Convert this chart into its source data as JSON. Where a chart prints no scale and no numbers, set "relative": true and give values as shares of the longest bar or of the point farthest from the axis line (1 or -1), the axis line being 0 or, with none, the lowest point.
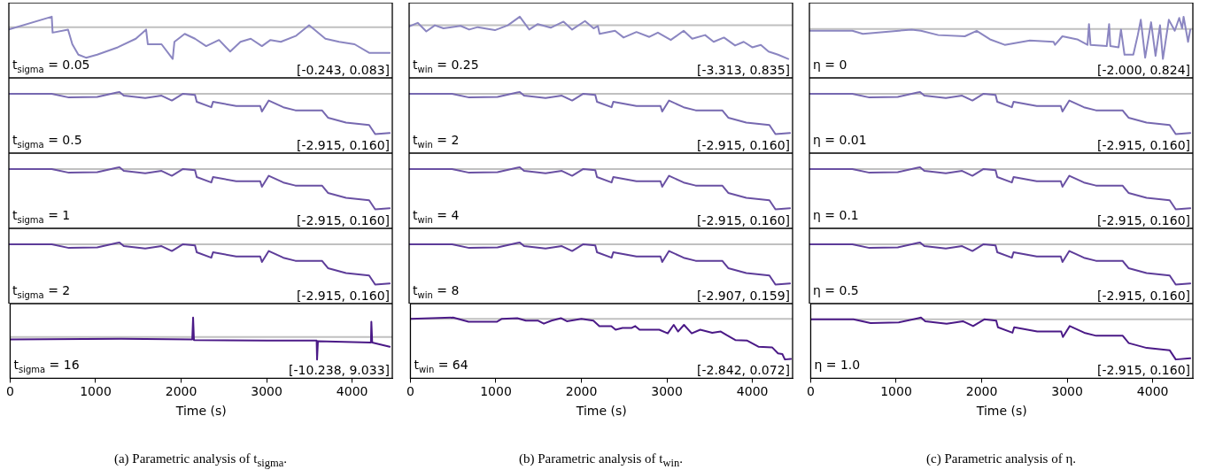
{
  "chart_data": [
    {
      "type": "line",
      "relative": true,
      "tick_labels": false,
      "xlim": [
        0,
        4470
      ],
      "color": "#8b86c1",
      "annotations": [
        "t$_{sigma}$ = 0.05",
        "[-0.243, 0.083]"
      ],
      "ref_lines": [
        {
          "axis": "y",
          "value": 0.83,
          "color": "#c0c0c0"
        }
      ],
      "x": [
        0,
        500,
        510,
        690,
        740,
        810,
        900,
        1030,
        1270,
        1480,
        1600,
        1620,
        1780,
        1910,
        1930,
        2050,
        2170,
        2300,
        2450,
        2580,
        2700,
        2820,
        2950,
        3050,
        3170,
        3350,
        3500,
        3690,
        3850,
        4030,
        4200,
        4440
      ],
      "values": [
        0.79,
        1,
        0.74,
        0.79,
        0.55,
        0.38,
        0.33,
        0.38,
        0.5,
        0.64,
        0.79,
        0.55,
        0.55,
        0.31,
        0.59,
        0.72,
        0.64,
        0.52,
        0.62,
        0.43,
        0.59,
        0.64,
        0.52,
        0.62,
        0.59,
        0.69,
        0.86,
        0.64,
        0.59,
        0.55,
        0.41,
        0.41
      ]
    },
    {
      "type": "line",
      "relative": true,
      "tick_labels": false,
      "xlim": [
        0,
        4470
      ],
      "color": "#7668b0",
      "annotations": [
        "t$_{sigma}$ = 0.5",
        "[-2.915, 0.160]"
      ],
      "ref_lines": [
        {
          "axis": "y",
          "value": 0.97,
          "color": "#c0c0c0"
        }
      ],
      "x": [
        0,
        500,
        700,
        1030,
        1260,
        1290,
        1340,
        1590,
        1780,
        1900,
        2030,
        2170,
        2190,
        2360,
        2380,
        2650,
        2930,
        2950,
        3030,
        3200,
        3340,
        3650,
        3720,
        3930,
        4200,
        4270,
        4440
      ],
      "values": [
        0.97,
        0.97,
        0.91,
        0.92,
        0.99,
        1,
        0.94,
        0.9,
        0.94,
        0.86,
        0.97,
        0.95,
        0.84,
        0.75,
        0.84,
        0.77,
        0.77,
        0.68,
        0.86,
        0.75,
        0.7,
        0.7,
        0.58,
        0.5,
        0.46,
        0.31,
        0.33
      ]
    },
    {
      "type": "line",
      "relative": true,
      "tick_labels": false,
      "xlim": [
        0,
        4470
      ],
      "color": "#6a51a3",
      "annotations": [
        "t$_{sigma}$ = 1",
        "[-2.915, 0.160]"
      ],
      "ref_lines": [
        {
          "axis": "y",
          "value": 0.97,
          "color": "#c0c0c0"
        }
      ],
      "x": [
        0,
        500,
        700,
        1030,
        1260,
        1290,
        1340,
        1590,
        1780,
        1900,
        2030,
        2170,
        2190,
        2360,
        2380,
        2650,
        2930,
        2950,
        3030,
        3200,
        3340,
        3650,
        3720,
        3930,
        4200,
        4270,
        4440
      ],
      "values": [
        0.97,
        0.97,
        0.91,
        0.92,
        0.99,
        1,
        0.94,
        0.9,
        0.94,
        0.86,
        0.97,
        0.95,
        0.84,
        0.75,
        0.84,
        0.77,
        0.77,
        0.68,
        0.86,
        0.75,
        0.7,
        0.7,
        0.58,
        0.5,
        0.46,
        0.31,
        0.33
      ]
    },
    {
      "type": "line",
      "relative": true,
      "tick_labels": false,
      "xlim": [
        0,
        4470
      ],
      "color": "#5d3c99",
      "annotations": [
        "t$_{sigma}$ = 2",
        "[-2.915, 0.160]"
      ],
      "ref_lines": [
        {
          "axis": "y",
          "value": 0.97,
          "color": "#c0c0c0"
        }
      ],
      "x": [
        0,
        500,
        700,
        1030,
        1260,
        1290,
        1340,
        1590,
        1780,
        1900,
        2030,
        2170,
        2190,
        2360,
        2380,
        2650,
        2930,
        2950,
        3030,
        3200,
        3340,
        3650,
        3720,
        3930,
        4200,
        4270,
        4440
      ],
      "values": [
        0.97,
        0.97,
        0.91,
        0.92,
        0.99,
        1,
        0.94,
        0.9,
        0.94,
        0.86,
        0.97,
        0.95,
        0.84,
        0.75,
        0.84,
        0.77,
        0.77,
        0.68,
        0.86,
        0.75,
        0.7,
        0.7,
        0.58,
        0.5,
        0.46,
        0.31,
        0.33
      ]
    },
    {
      "type": "line",
      "relative": true,
      "tick_labels": "x",
      "xlim": [
        0,
        4470
      ],
      "xticks": [
        0,
        1000,
        2000,
        3000,
        4000
      ],
      "xlabel": "Time (s)",
      "color": "#4b1a87",
      "annotations": [
        "t$_{sigma}$ = 16",
        "[-10.238, 9.033]",
        "(a) Parametric analysis of t$_{sigma}$."
      ],
      "ref_lines": [
        {
          "axis": "y",
          "value": 0.68,
          "color": "#c0c0c0"
        }
      ],
      "x": [
        0,
        1300,
        2130,
        2140,
        2150,
        3000,
        3585,
        3590,
        3600,
        4220,
        4225,
        4235,
        4440
      ],
      "values": [
        0.64,
        0.65,
        0.64,
        1,
        0.63,
        0.62,
        0.62,
        0.31,
        0.61,
        0.59,
        0.93,
        0.59,
        0.52
      ]
    },
    {
      "type": "line",
      "relative": true,
      "tick_labels": false,
      "xlim": [
        0,
        4470
      ],
      "color": "#8b86c1",
      "annotations": [
        "t$_{win}$ = 0.25",
        "[-3.313, 0.835]"
      ],
      "ref_lines": [
        {
          "axis": "y",
          "value": 0.86,
          "color": "#c0c0c0"
        }
      ],
      "x": [
        0,
        100,
        200,
        300,
        400,
        600,
        700,
        800,
        1000,
        1150,
        1290,
        1400,
        1500,
        1650,
        1800,
        1900,
        2050,
        2150,
        2200,
        2220,
        2400,
        2500,
        2650,
        2800,
        2900,
        3050,
        3200,
        3300,
        3450,
        3550,
        3670,
        3800,
        3900,
        4000,
        4100,
        4190,
        4300,
        4420
      ],
      "values": [
        0.84,
        0.9,
        0.76,
        0.86,
        0.81,
        0.85,
        0.79,
        0.83,
        0.78,
        0.86,
        1,
        0.79,
        0.88,
        0.82,
        0.92,
        0.79,
        0.93,
        0.81,
        0.85,
        0.72,
        0.77,
        0.66,
        0.75,
        0.67,
        0.74,
        0.62,
        0.77,
        0.64,
        0.7,
        0.59,
        0.66,
        0.53,
        0.59,
        0.5,
        0.54,
        0.43,
        0.38,
        0.31
      ]
    },
    {
      "type": "line",
      "relative": true,
      "tick_labels": false,
      "xlim": [
        0,
        4470
      ],
      "color": "#7668b0",
      "annotations": [
        "t$_{win}$ = 2",
        "[-2.915, 0.160]"
      ],
      "ref_lines": [
        {
          "axis": "y",
          "value": 0.97,
          "color": "#c0c0c0"
        }
      ],
      "x": [
        0,
        500,
        700,
        1030,
        1260,
        1290,
        1340,
        1590,
        1780,
        1900,
        2030,
        2170,
        2190,
        2360,
        2380,
        2650,
        2930,
        2950,
        3030,
        3200,
        3340,
        3650,
        3720,
        3930,
        4200,
        4270,
        4440
      ],
      "values": [
        0.97,
        0.97,
        0.91,
        0.92,
        0.99,
        1,
        0.94,
        0.9,
        0.94,
        0.86,
        0.97,
        0.95,
        0.84,
        0.75,
        0.84,
        0.77,
        0.77,
        0.68,
        0.86,
        0.75,
        0.7,
        0.7,
        0.58,
        0.5,
        0.46,
        0.31,
        0.33
      ]
    },
    {
      "type": "line",
      "relative": true,
      "tick_labels": false,
      "xlim": [
        0,
        4470
      ],
      "color": "#6a51a3",
      "annotations": [
        "t$_{win}$ = 4",
        "[-2.915, 0.160]"
      ],
      "ref_lines": [
        {
          "axis": "y",
          "value": 0.97,
          "color": "#c0c0c0"
        }
      ],
      "x": [
        0,
        500,
        700,
        1030,
        1260,
        1290,
        1340,
        1590,
        1780,
        1900,
        2030,
        2170,
        2190,
        2360,
        2380,
        2650,
        2930,
        2950,
        3030,
        3200,
        3340,
        3650,
        3720,
        3930,
        4200,
        4270,
        4440
      ],
      "values": [
        0.97,
        0.97,
        0.91,
        0.92,
        0.99,
        1,
        0.94,
        0.9,
        0.94,
        0.86,
        0.97,
        0.95,
        0.84,
        0.75,
        0.84,
        0.77,
        0.77,
        0.68,
        0.86,
        0.75,
        0.7,
        0.7,
        0.58,
        0.5,
        0.46,
        0.31,
        0.33
      ]
    },
    {
      "type": "line",
      "relative": true,
      "tick_labels": false,
      "xlim": [
        0,
        4470
      ],
      "color": "#5d3c99",
      "annotations": [
        "t$_{win}$ = 8",
        "[-2.907, 0.159]"
      ],
      "ref_lines": [
        {
          "axis": "y",
          "value": 0.97,
          "color": "#c0c0c0"
        }
      ],
      "x": [
        0,
        500,
        700,
        1030,
        1260,
        1290,
        1340,
        1590,
        1780,
        1900,
        2030,
        2170,
        2190,
        2360,
        2380,
        2650,
        2930,
        2950,
        3030,
        3200,
        3340,
        3650,
        3720,
        3930,
        4200,
        4270,
        4440
      ],
      "values": [
        0.97,
        0.97,
        0.91,
        0.92,
        0.99,
        1,
        0.94,
        0.9,
        0.94,
        0.86,
        0.97,
        0.95,
        0.84,
        0.75,
        0.84,
        0.77,
        0.77,
        0.68,
        0.86,
        0.75,
        0.7,
        0.7,
        0.58,
        0.5,
        0.46,
        0.31,
        0.33
      ]
    },
    {
      "type": "line",
      "relative": true,
      "tick_labels": "x",
      "xlim": [
        0,
        4470
      ],
      "xticks": [
        0,
        1000,
        2000,
        3000,
        4000
      ],
      "xlabel": "Time (s)",
      "color": "#4b1a87",
      "annotations": [
        "t$_{win}$ = 64",
        "[-2.842, 0.072]",
        "(b) Parametric analysis of t$_{win}$."
      ],
      "ref_lines": [
        {
          "axis": "y",
          "value": 0.98,
          "color": "#c0c0c0"
        }
      ],
      "x": [
        0,
        500,
        680,
        1010,
        1070,
        1250,
        1350,
        1490,
        1560,
        1650,
        1760,
        1830,
        2000,
        2140,
        2210,
        2350,
        2400,
        2480,
        2590,
        2630,
        2680,
        2910,
        3010,
        3080,
        3130,
        3200,
        3290,
        3390,
        3530,
        3630,
        3700,
        3800,
        3940,
        4070,
        4230,
        4300,
        4350,
        4380,
        4450
      ],
      "values": [
        0.98,
        1,
        0.93,
        0.93,
        0.98,
        0.99,
        0.95,
        0.95,
        0.9,
        0.95,
        0.99,
        0.94,
        0.98,
        0.95,
        0.86,
        0.86,
        0.8,
        0.83,
        0.83,
        0.86,
        0.8,
        0.8,
        0.74,
        0.88,
        0.77,
        0.88,
        0.74,
        0.8,
        0.75,
        0.77,
        0.71,
        0.63,
        0.62,
        0.52,
        0.51,
        0.41,
        0.4,
        0.31,
        0.32
      ]
    },
    {
      "type": "line",
      "relative": true,
      "tick_labels": false,
      "xlim": [
        0,
        4470
      ],
      "color": "#8b86c1",
      "annotations": [
        "η = 0",
        "[-2.000, 0.824]"
      ],
      "ref_lines": [
        {
          "axis": "y",
          "value": 0.8,
          "color": "#c0c0c0"
        }
      ],
      "x": [
        0,
        500,
        623,
        1192,
        1300,
        1502,
        1812,
        1950,
        2105,
        2277,
        2570,
        2846,
        2863,
        2949,
        3122,
        3242,
        3259,
        3277,
        3466,
        3494,
        3508,
        3604,
        3632,
        3673,
        3776,
        3828,
        3863,
        3914,
        3983,
        4035,
        4087,
        4121,
        4190,
        4259,
        4311,
        4345,
        4362,
        4414,
        4440
      ],
      "values": [
        0.77,
        0.77,
        0.72,
        0.79,
        0.77,
        0.7,
        0.68,
        0.77,
        0.63,
        0.54,
        0.61,
        0.59,
        0.54,
        0.68,
        0.63,
        0.54,
        0.88,
        0.54,
        0.52,
        0.88,
        0.52,
        0.5,
        0.79,
        0.38,
        0.38,
        0.7,
        0.95,
        0.33,
        0.91,
        0.36,
        0.86,
        0.31,
        0.95,
        0.77,
        0.98,
        0.81,
        1,
        0.59,
        0.79
      ]
    },
    {
      "type": "line",
      "relative": true,
      "tick_labels": false,
      "xlim": [
        0,
        4470
      ],
      "color": "#7668b0",
      "annotations": [
        "η = 0.01",
        "[-2.915, 0.160]"
      ],
      "ref_lines": [
        {
          "axis": "y",
          "value": 0.97,
          "color": "#c0c0c0"
        }
      ],
      "x": [
        0,
        500,
        700,
        1030,
        1260,
        1290,
        1340,
        1590,
        1780,
        1900,
        2030,
        2170,
        2190,
        2360,
        2380,
        2650,
        2930,
        2950,
        3030,
        3200,
        3340,
        3650,
        3720,
        3930,
        4200,
        4270,
        4440
      ],
      "values": [
        0.97,
        0.97,
        0.91,
        0.92,
        0.99,
        1,
        0.94,
        0.9,
        0.94,
        0.86,
        0.97,
        0.95,
        0.84,
        0.75,
        0.84,
        0.77,
        0.77,
        0.68,
        0.86,
        0.75,
        0.7,
        0.7,
        0.58,
        0.5,
        0.46,
        0.31,
        0.33
      ]
    },
    {
      "type": "line",
      "relative": true,
      "tick_labels": false,
      "xlim": [
        0,
        4470
      ],
      "color": "#6a51a3",
      "annotations": [
        "η = 0.1",
        "[-2.915, 0.160]"
      ],
      "ref_lines": [
        {
          "axis": "y",
          "value": 0.97,
          "color": "#c0c0c0"
        }
      ],
      "x": [
        0,
        500,
        700,
        1030,
        1260,
        1290,
        1340,
        1590,
        1780,
        1900,
        2030,
        2170,
        2190,
        2360,
        2380,
        2650,
        2930,
        2950,
        3030,
        3200,
        3340,
        3650,
        3720,
        3930,
        4200,
        4270,
        4440
      ],
      "values": [
        0.97,
        0.97,
        0.91,
        0.92,
        0.99,
        1,
        0.94,
        0.9,
        0.94,
        0.86,
        0.97,
        0.95,
        0.84,
        0.75,
        0.84,
        0.77,
        0.77,
        0.68,
        0.86,
        0.75,
        0.7,
        0.7,
        0.58,
        0.5,
        0.46,
        0.31,
        0.33
      ]
    },
    {
      "type": "line",
      "relative": true,
      "tick_labels": false,
      "xlim": [
        0,
        4470
      ],
      "color": "#5d3c99",
      "annotations": [
        "η = 0.5",
        "[-2.915, 0.160]"
      ],
      "ref_lines": [
        {
          "axis": "y",
          "value": 0.97,
          "color": "#c0c0c0"
        }
      ],
      "x": [
        0,
        500,
        700,
        1030,
        1260,
        1290,
        1340,
        1590,
        1780,
        1900,
        2030,
        2170,
        2190,
        2360,
        2380,
        2650,
        2930,
        2950,
        3030,
        3200,
        3340,
        3650,
        3720,
        3930,
        4200,
        4270,
        4440
      ],
      "values": [
        0.97,
        0.97,
        0.91,
        0.92,
        0.99,
        1,
        0.94,
        0.9,
        0.94,
        0.86,
        0.97,
        0.95,
        0.84,
        0.75,
        0.84,
        0.77,
        0.77,
        0.68,
        0.86,
        0.75,
        0.7,
        0.7,
        0.58,
        0.5,
        0.46,
        0.31,
        0.33
      ]
    },
    {
      "type": "line",
      "relative": true,
      "tick_labels": "x",
      "xlim": [
        0,
        4470
      ],
      "xticks": [
        0,
        1000,
        2000,
        3000,
        4000
      ],
      "xlabel": "Time (s)",
      "color": "#4b1a87",
      "annotations": [
        "η = 1.0",
        "[-2.915, 0.160]",
        "(c) Parametric analysis of η."
      ],
      "ref_lines": [
        {
          "axis": "y",
          "value": 0.97,
          "color": "#c0c0c0"
        }
      ],
      "x": [
        0,
        500,
        700,
        1030,
        1260,
        1290,
        1340,
        1590,
        1780,
        1900,
        2030,
        2170,
        2190,
        2360,
        2380,
        2650,
        2930,
        2950,
        3030,
        3200,
        3340,
        3650,
        3720,
        3930,
        4200,
        4270,
        4440
      ],
      "values": [
        0.97,
        0.97,
        0.91,
        0.92,
        0.99,
        1,
        0.94,
        0.9,
        0.94,
        0.86,
        0.97,
        0.95,
        0.84,
        0.75,
        0.84,
        0.77,
        0.77,
        0.68,
        0.86,
        0.75,
        0.7,
        0.7,
        0.58,
        0.5,
        0.46,
        0.31,
        0.33
      ]
    }
  ]
}
